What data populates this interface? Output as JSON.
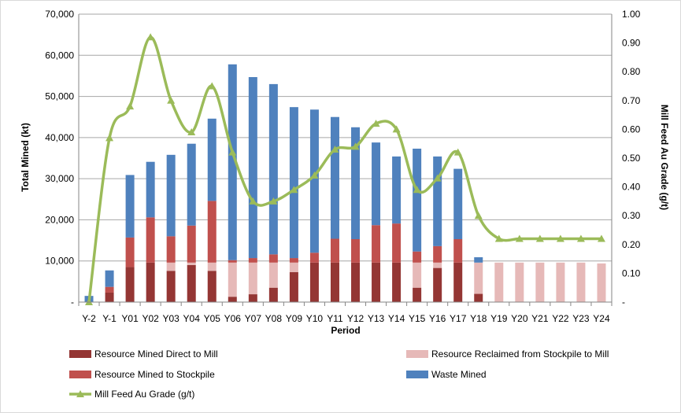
{
  "chart_data": {
    "type": "bar",
    "stacked": true,
    "xlabel": "Period",
    "ylabel": "Total Mined (kt)",
    "y2label": "Mill Feed Au Grade (g/t)",
    "ylim": [
      0,
      70000
    ],
    "y2lim": [
      0,
      1.0
    ],
    "y_ticks": [
      "-",
      "10,000",
      "20,000",
      "30,000",
      "40,000",
      "50,000",
      "60,000",
      "70,000"
    ],
    "y2_ticks": [
      "-",
      "0.10",
      "0.20",
      "0.30",
      "0.40",
      "0.50",
      "0.60",
      "0.70",
      "0.80",
      "0.90",
      "1.00"
    ],
    "grid": true,
    "legend_position": "bottom",
    "categories": [
      "Y-2",
      "Y-1",
      "Y01",
      "Y02",
      "Y03",
      "Y04",
      "Y05",
      "Y06",
      "Y07",
      "Y08",
      "Y09",
      "Y10",
      "Y11",
      "Y12",
      "Y13",
      "Y14",
      "Y15",
      "Y16",
      "Y17",
      "Y18",
      "Y19",
      "Y20",
      "Y21",
      "Y22",
      "Y23",
      "Y24"
    ],
    "series": [
      {
        "name": "Resource Mined Direct to Mill",
        "type": "bar",
        "axis": "left",
        "color": "#943634",
        "values": [
          0,
          2300,
          8500,
          9600,
          7600,
          9000,
          7600,
          1300,
          1900,
          3500,
          7300,
          9600,
          9600,
          9600,
          9600,
          9600,
          3500,
          8300,
          9600,
          2000,
          0,
          0,
          0,
          0,
          0,
          0
        ]
      },
      {
        "name": "Resource Reclaimed from Stockpile to Mill",
        "type": "bar",
        "axis": "left",
        "color": "#E6B9B8",
        "values": [
          0,
          0,
          0,
          0,
          2000,
          600,
          2000,
          8300,
          7700,
          6100,
          2300,
          0,
          0,
          0,
          0,
          0,
          6100,
          1300,
          0,
          7600,
          9600,
          9600,
          9600,
          9600,
          9600,
          9400
        ]
      },
      {
        "name": "Resource Mined to Stockpile",
        "type": "bar",
        "axis": "left",
        "color": "#C0504D",
        "values": [
          0,
          1400,
          7200,
          11000,
          6400,
          9000,
          15000,
          600,
          1100,
          2000,
          1100,
          2400,
          5800,
          5700,
          9100,
          9500,
          2700,
          4000,
          5700,
          0,
          0,
          0,
          0,
          0,
          0,
          0
        ]
      },
      {
        "name": "Waste Mined",
        "type": "bar",
        "axis": "left",
        "color": "#4F81BD",
        "values": [
          1500,
          4000,
          15200,
          13500,
          19800,
          19900,
          20000,
          47600,
          44000,
          41400,
          36700,
          34800,
          29600,
          27200,
          20100,
          16300,
          25000,
          21800,
          17100,
          1300,
          0,
          0,
          0,
          0,
          0,
          0
        ]
      },
      {
        "name": "Mill Feed Au Grade (g/t)",
        "type": "line",
        "axis": "right",
        "color": "#9BBB59",
        "values": [
          0.0,
          0.57,
          0.68,
          0.92,
          0.7,
          0.59,
          0.75,
          0.52,
          0.35,
          0.35,
          0.39,
          0.44,
          0.53,
          0.54,
          0.62,
          0.6,
          0.39,
          0.43,
          0.52,
          0.3,
          0.22,
          0.22,
          0.22,
          0.22,
          0.22,
          0.22
        ]
      }
    ]
  }
}
